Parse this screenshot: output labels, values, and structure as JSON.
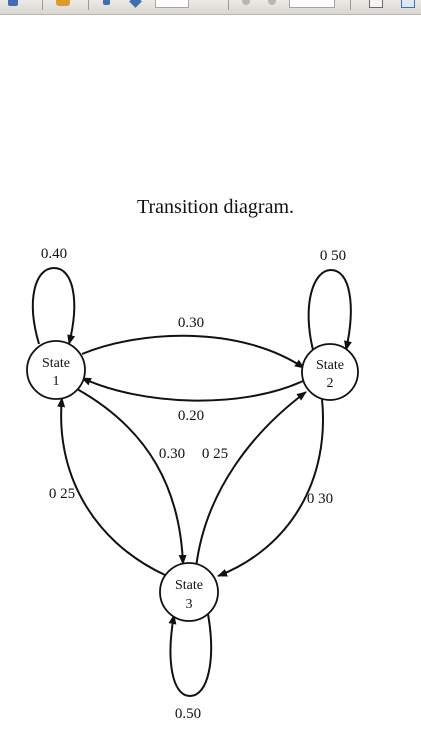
{
  "title": "Transition diagram.",
  "states": [
    {
      "id": "s1",
      "line1": "State",
      "line2": "1"
    },
    {
      "id": "s2",
      "line1": "State",
      "line2": "2"
    },
    {
      "id": "s3",
      "line1": "State",
      "line2": "3"
    }
  ],
  "transitions": {
    "s1_self": "0.40",
    "s2_self": "0 50",
    "s3_self": "0.50",
    "s1_to_s2": "0.30",
    "s2_to_s1": "0.20",
    "s1_to_s3": "0.30",
    "s3_to_s2": "0 25",
    "s3_to_s1": "0 25",
    "s2_to_s3": "0 30"
  }
}
